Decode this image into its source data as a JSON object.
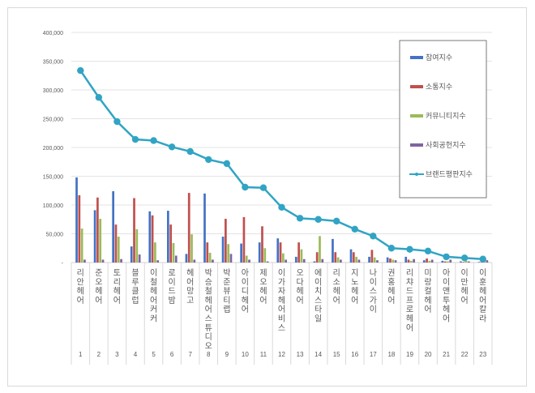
{
  "chart_data": {
    "type": "bar",
    "title": "",
    "xlabel": "",
    "ylabel": "",
    "ylim": [
      0,
      400000
    ],
    "yticks": [
      "-",
      "50,000",
      "100,000",
      "150,000",
      "200,000",
      "250,000",
      "300,000",
      "350,000",
      "400,000"
    ],
    "grid": true,
    "legend_position": "right",
    "ranks": [
      "1",
      "2",
      "3",
      "4",
      "5",
      "6",
      "7",
      "8",
      "9",
      "10",
      "11",
      "12",
      "13",
      "14",
      "15",
      "16",
      "17",
      "18",
      "19",
      "20",
      "21",
      "22",
      "23"
    ],
    "categories": [
      "리안헤어",
      "준오헤어",
      "토리헤어",
      "블루클럽",
      "이철헤어커커",
      "로이드밤",
      "헤어망고",
      "박승철헤어스튜디오",
      "박준뷰티랩",
      "아이디헤어",
      "제오헤어",
      "이가자헤어비스",
      "오다헤어",
      "에이치스타일",
      "리소헤어",
      "지노헤어",
      "나이스가이",
      "권홍헤어",
      "리챠드프로헤어",
      "미랑컬헤어",
      "아이앤투헤어",
      "이만헤어",
      "이훈헤어칼라"
    ],
    "series": [
      {
        "name": "참여지수",
        "type": "bar",
        "color": "#4472c4",
        "values": [
          148000,
          91000,
          124000,
          28000,
          89000,
          90000,
          15000,
          120000,
          45000,
          33000,
          35000,
          42000,
          10000,
          2000,
          41000,
          23000,
          10000,
          9000,
          10000,
          4000,
          3000,
          2000,
          1000
        ]
      },
      {
        "name": "소통지수",
        "type": "bar",
        "color": "#c0504d",
        "values": [
          117000,
          113000,
          66000,
          112000,
          82000,
          66000,
          121000,
          35000,
          76000,
          79000,
          63000,
          35000,
          35000,
          18000,
          18000,
          18000,
          22000,
          7000,
          5000,
          7000,
          2000,
          1000,
          1000
        ]
      },
      {
        "name": "커뮤니티지수",
        "type": "bar",
        "color": "#9bbb59",
        "values": [
          59000,
          76000,
          45000,
          58000,
          35000,
          34000,
          49000,
          17000,
          32000,
          12000,
          25000,
          16000,
          23000,
          46000,
          9000,
          10000,
          9000,
          5000,
          3000,
          3000,
          2000,
          3000,
          2000
        ]
      },
      {
        "name": "사회공헌지수",
        "type": "bar",
        "color": "#8064a2",
        "values": [
          5000,
          5000,
          6000,
          14000,
          4000,
          12000,
          5000,
          5000,
          15000,
          5000,
          2000,
          5000,
          6000,
          6000,
          5000,
          5000,
          4000,
          4000,
          6000,
          5000,
          5000,
          2000,
          4000
        ]
      },
      {
        "name": "브랜드평판지수",
        "type": "line",
        "color": "#31a4c4",
        "values": [
          333700,
          287000,
          245000,
          214000,
          212000,
          201000,
          193000,
          179000,
          172000,
          131000,
          130000,
          96000,
          77000,
          75000,
          72000,
          58000,
          46000,
          25000,
          23000,
          20000,
          10000,
          8000,
          6000
        ]
      }
    ]
  }
}
